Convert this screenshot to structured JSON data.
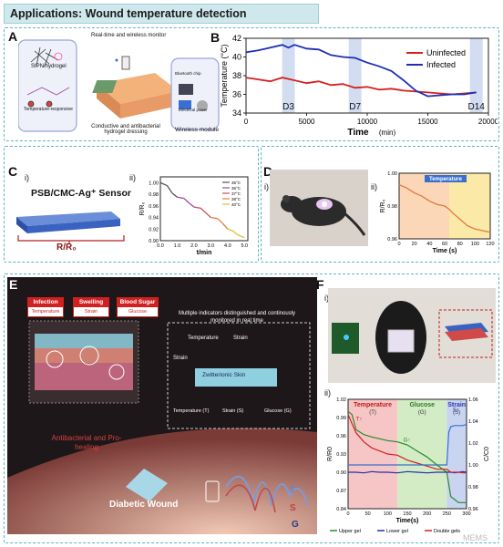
{
  "banner": {
    "title": "Applications: Wound temperature detection"
  },
  "panels": {
    "a": "A",
    "b": "B",
    "c": "C",
    "d": "D",
    "e": "E",
    "f": "F"
  },
  "panelA": {
    "monitor": "Real-time and wireless monitor",
    "sipn": "SIPN hydrogel",
    "temp_resp": "Temperature-responsive",
    "dressing": "Conductive and antibacterial hydrogel dressing",
    "bluetooth": "Bluetooth chip",
    "power": "Electrical power",
    "module": "Wireless module"
  },
  "chart_b": {
    "type": "line",
    "xlabel": "Time",
    "xunit": "(min)",
    "ylabel": "Temperature (°C)",
    "xlim": [
      0,
      20000
    ],
    "ylim": [
      34,
      42
    ],
    "xticks": [
      "0",
      "5000",
      "10000",
      "15000",
      "20000"
    ],
    "yticks": [
      "34",
      "36",
      "38",
      "40",
      "42"
    ],
    "series": [
      {
        "name": "Uninfected",
        "color": "#d62020",
        "x": [
          0,
          1000,
          2000,
          3000,
          4000,
          5000,
          6000,
          7000,
          8000,
          9000,
          10000,
          11000,
          12000,
          13000,
          14000,
          15000,
          16000,
          17000,
          18000,
          19000
        ],
        "y": [
          37.8,
          37.6,
          37.4,
          37.8,
          37.5,
          37.2,
          37.4,
          37.0,
          37.1,
          36.7,
          36.8,
          36.5,
          36.6,
          36.4,
          36.3,
          36.2,
          36.1,
          36.0,
          36.1,
          36.2
        ]
      },
      {
        "name": "Infected",
        "color": "#1d2fb5",
        "x": [
          0,
          1000,
          2000,
          3000,
          3500,
          4000,
          5000,
          6000,
          7000,
          8000,
          9000,
          10000,
          11000,
          12000,
          13000,
          14000,
          15000,
          16000,
          17000,
          18000,
          19000
        ],
        "y": [
          40.5,
          40.7,
          41.0,
          41.3,
          41.0,
          41.3,
          40.9,
          40.8,
          40.2,
          40.0,
          39.9,
          39.4,
          39.0,
          38.5,
          37.5,
          36.4,
          35.8,
          35.9,
          36.0,
          36.0,
          36.2
        ]
      }
    ],
    "markers": [
      "D3",
      "D7",
      "D14"
    ],
    "marker_x": [
      3500,
      9000,
      19000
    ]
  },
  "panelC": {
    "sub_i": "i)",
    "sub_ii": "ii)",
    "sensor": "PSB/CMC-Ag⁺ Sensor",
    "rr0": "R/R₀"
  },
  "chart_c": {
    "type": "line",
    "xlabel": "t/min",
    "ylabel": "R/R₀",
    "xlim": [
      0,
      5.2
    ],
    "ylim": [
      0.9,
      1.01
    ],
    "xticks": [
      "0.0",
      "1.0",
      "2.0",
      "3.0",
      "4.0",
      "5.0"
    ],
    "yticks": [
      "1.00",
      "0.98",
      "0.96",
      "0.94",
      "0.92",
      "0.90"
    ],
    "legend": [
      "35°C",
      "36°C",
      "37°C",
      "38°C",
      "40°C"
    ],
    "colors": [
      "#555555",
      "#9b4a9b",
      "#c0504d",
      "#e08040",
      "#d8c040"
    ],
    "series": [
      {
        "x": [
          0,
          0.4,
          0.7,
          1.0,
          1.4,
          1.7,
          2.0,
          2.4,
          2.7,
          3.0,
          3.4,
          3.7,
          4.0,
          4.3,
          4.6,
          5.0
        ],
        "y": [
          1.0,
          0.995,
          0.982,
          0.975,
          0.973,
          0.965,
          0.958,
          0.956,
          0.948,
          0.94,
          0.938,
          0.93,
          0.92,
          0.917,
          0.91,
          0.905
        ]
      }
    ]
  },
  "panelD": {
    "sub_i": "i)",
    "sub_ii": "ii)"
  },
  "chart_d": {
    "type": "line",
    "xlabel": "Time (s)",
    "ylabel": "R/R₀",
    "title": "Temperature",
    "xlim": [
      0,
      120
    ],
    "ylim": [
      0.96,
      1.0
    ],
    "xticks": [
      "0",
      "20",
      "40",
      "60",
      "80",
      "100",
      "120"
    ],
    "yticks": [
      "1.00",
      "0.98",
      "0.96"
    ],
    "series": [
      {
        "x": [
          0,
          10,
          20,
          30,
          40,
          50,
          60,
          66,
          70,
          80,
          90,
          100,
          110,
          120
        ],
        "y": [
          0.993,
          0.991,
          0.988,
          0.986,
          0.983,
          0.981,
          0.98,
          0.978,
          0.976,
          0.972,
          0.968,
          0.966,
          0.965,
          0.964
        ]
      }
    ]
  },
  "panelE": {
    "infection": "Infection",
    "infection_sub": "Temperature",
    "swelling": "Swelling",
    "swelling_sub": "Strain",
    "sugar": "Blood Sugar",
    "sugar_sub": "Glucose",
    "indicators": "Multiple indicators distinguished and continously monitored in real time",
    "temperature": "Temperature",
    "strain": "Strain",
    "skin": "Zwitterionic Skin",
    "bottom_t": "Temperature (T)",
    "bottom_s": "Strain (S)",
    "bottom_g": "Glucose (G)",
    "antibac": "Antibacterial and Pro-healing",
    "diabetic": "Diabetic Wound",
    "wave_t": "T",
    "wave_s": "S",
    "wave_g": "G"
  },
  "panelF": {
    "sub_i": "i)",
    "sub_ii": "ii)"
  },
  "chart_f": {
    "type": "line",
    "xlabel": "Time(s)",
    "ylabel": "R/R0",
    "ylabel2": "C/C0",
    "xlim": [
      0,
      300
    ],
    "ylim": [
      0.84,
      1.02
    ],
    "y2lim": [
      0.96,
      1.06
    ],
    "xticks": [
      "0",
      "50",
      "100",
      "150",
      "200",
      "250",
      "300"
    ],
    "yticks": [
      "1.02",
      "0.99",
      "0.96",
      "0.93",
      "0.90",
      "0.87",
      "0.84"
    ],
    "y2ticks": [
      "1.06",
      "1.04",
      "1.02",
      "1.00",
      "0.98",
      "0.96"
    ],
    "regions": [
      {
        "label": "Temperature",
        "sub": "(T)",
        "from": 0,
        "to": 125,
        "color": "#f6c6c6"
      },
      {
        "label": "Glucose",
        "sub": "(G)",
        "from": 125,
        "to": 250,
        "color": "#d3ecc5"
      },
      {
        "label": "Strain",
        "sub": "(S)",
        "from": 250,
        "to": 300,
        "color": "#c8d4f0"
      }
    ],
    "annotations": [
      "T↑",
      "G↑",
      "S↑"
    ],
    "series": [
      {
        "name": "Upper gel",
        "color": "#2a8a2a",
        "x": [
          0,
          10,
          20,
          40,
          60,
          80,
          100,
          125,
          150,
          175,
          200,
          225,
          250,
          260,
          270,
          280,
          290,
          300
        ],
        "y": [
          1.0,
          0.995,
          0.97,
          0.962,
          0.958,
          0.955,
          0.952,
          0.95,
          0.945,
          0.935,
          0.925,
          0.912,
          0.9,
          0.86,
          0.855,
          0.85,
          0.85,
          0.85
        ]
      },
      {
        "name": "Lower gel",
        "color": "#2030b0",
        "x": [
          0,
          20,
          40,
          60,
          80,
          100,
          125,
          150,
          175,
          200,
          225,
          250,
          260,
          270,
          280,
          290,
          300
        ],
        "y": [
          0.9,
          0.9,
          0.899,
          0.901,
          0.9,
          0.9,
          0.899,
          0.901,
          0.9,
          0.899,
          0.9,
          0.9,
          0.9,
          0.899,
          0.9,
          0.901,
          0.9
        ]
      },
      {
        "name": "Double gels",
        "color": "#d42020",
        "x": [
          0,
          10,
          20,
          40,
          60,
          80,
          100,
          125,
          150,
          175,
          200,
          225,
          250,
          260,
          270,
          280,
          290,
          300
        ],
        "y": [
          0.995,
          0.98,
          0.965,
          0.95,
          0.94,
          0.935,
          0.93,
          0.928,
          0.92,
          0.915,
          0.91,
          0.905,
          0.905,
          0.9,
          0.9,
          0.9,
          0.899,
          0.899
        ]
      },
      {
        "name": "C/C0",
        "color": "#3a6fd0",
        "axis": "right",
        "x": [
          0,
          50,
          100,
          125,
          150,
          200,
          250,
          255,
          260,
          270,
          280,
          290,
          300
        ],
        "y": [
          1.0,
          1.0,
          1.0,
          1.0,
          1.0,
          1.0,
          1.0,
          1.03,
          1.035,
          1.036,
          1.036,
          1.036,
          1.037
        ]
      }
    ]
  },
  "watermark": "MEMS"
}
